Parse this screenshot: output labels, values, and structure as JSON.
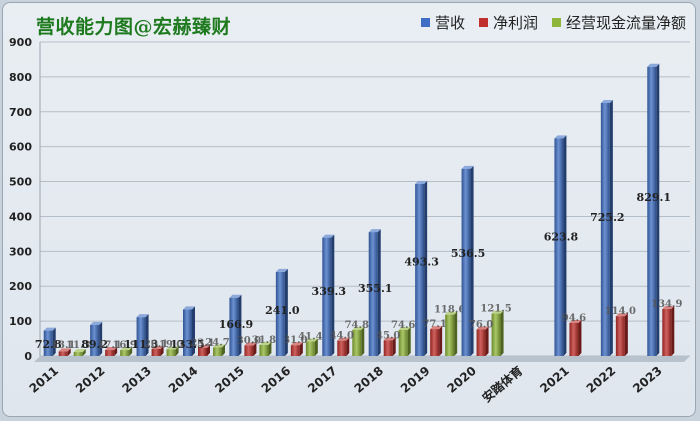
{
  "chart_data": {
    "type": "bar",
    "title": "营收能力图@宏赫臻财",
    "categories": [
      "2011",
      "2012",
      "2013",
      "2014",
      "2015",
      "2016",
      "2017",
      "2018",
      "2019",
      "2020",
      "安踏体育",
      "2021",
      "2022",
      "2023"
    ],
    "ylim": [
      0,
      900
    ],
    "yticks": [
      0,
      100,
      200,
      300,
      400,
      500,
      600,
      700,
      800,
      900
    ],
    "grid": true,
    "legend_position": "top-right",
    "series": [
      {
        "name": "营收",
        "color": "#3f6fc4",
        "values": [
          72.8,
          89.2,
          111.3,
          133.5,
          166.9,
          241.0,
          339.3,
          355.1,
          493.3,
          536.5,
          null,
          623.8,
          725.2,
          829.1
        ],
        "labels": [
          "72.8",
          "89.2",
          "111.3",
          "133.5",
          "166.9",
          "241.0",
          "339.3",
          "355.1",
          "493.3",
          "536.5",
          "",
          "623.8",
          "725.2",
          "829.1"
        ]
      },
      {
        "name": "净利润",
        "color": "#c0302c",
        "values": [
          13.1,
          17.1,
          20.1,
          23.1,
          30.0,
          31.0,
          44.0,
          45.0,
          77.1,
          76.0,
          null,
          94.6,
          114.0,
          134.9
        ],
        "labels": [
          "13.1",
          "17.1",
          "20.1",
          "23.1",
          "30.0",
          "31.0",
          "44.0",
          "45.0",
          "77.1",
          "76.0",
          "",
          "94.6",
          "114.0",
          "134.9"
        ]
      },
      {
        "name": "经营现金流量净额",
        "color": "#8fb63a",
        "values": [
          11.3,
          16.9,
          19.0,
          24.7,
          31.8,
          41.4,
          74.8,
          74.6,
          118.6,
          121.5,
          null,
          null,
          null,
          null
        ],
        "labels": [
          "11.3",
          "16.9",
          "19.0",
          "24.7",
          "31.8",
          "41.4",
          "74.8",
          "74.6",
          "118.6",
          "121.5",
          "",
          "",
          "",
          ""
        ]
      }
    ]
  }
}
